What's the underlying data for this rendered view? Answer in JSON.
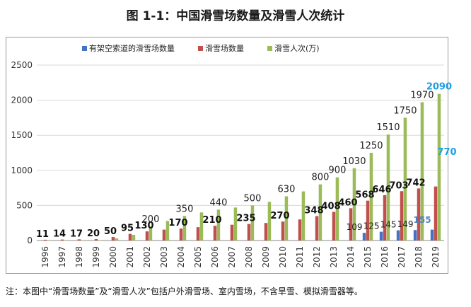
{
  "title": "图 1-1：中国滑雪场数量及滑雪人次统计",
  "note": "注：本图中“滑雪场数量”及“滑雪人次”包括户外滑雪场、室内雪场，不含旱雪、模拟滑雪器等。",
  "chart_data": {
    "type": "bar",
    "title": "图 1-1：中国滑雪场数量及滑雪人次统计",
    "xlabel": "",
    "ylabel": "",
    "ylim": [
      0,
      2500
    ],
    "yticks": [
      "0",
      "500",
      "1000",
      "1500",
      "2000",
      "2500"
    ],
    "grid": true,
    "legend_position": "top",
    "categories": [
      "1996",
      "1997",
      "1998",
      "1999",
      "2000",
      "2001",
      "2002",
      "2003",
      "2004",
      "2005",
      "2006",
      "2007",
      "2008",
      "2009",
      "2010",
      "2011",
      "2012",
      "2013",
      "2014",
      "2015",
      "2016",
      "2017",
      "2018",
      "2019"
    ],
    "series": [
      {
        "name": "有架空索道的滑雪场数量",
        "color": "#4472C4",
        "values": [
          null,
          null,
          null,
          null,
          null,
          null,
          null,
          null,
          null,
          null,
          null,
          null,
          null,
          null,
          null,
          null,
          null,
          null,
          null,
          109,
          125,
          145,
          149,
          155
        ],
        "labels": [
          "",
          "",
          "",
          "",
          "",
          "",
          "",
          "",
          "",
          "",
          "",
          "",
          "",
          "",
          "",
          "",
          "",
          "",
          "",
          "109",
          "125",
          "145",
          "149",
          "155"
        ]
      },
      {
        "name": "滑雪场数量",
        "color": "#C0504D",
        "values": [
          11,
          14,
          17,
          20,
          50,
          95,
          130,
          155,
          170,
          190,
          210,
          225,
          235,
          250,
          270,
          300,
          348,
          408,
          460,
          568,
          646,
          703,
          742,
          770
        ],
        "labels": [
          "11",
          "14",
          "17",
          "20",
          "50",
          "95",
          "130",
          "",
          "170",
          "",
          "210",
          "",
          "235",
          "",
          "270",
          "",
          "348",
          "408",
          "460",
          "568",
          "646",
          "703",
          "742",
          "770"
        ]
      },
      {
        "name": "滑雪人次(万)",
        "color": "#9BBB59",
        "values": [
          1,
          1,
          2,
          3,
          30,
          80,
          200,
          280,
          350,
          400,
          440,
          470,
          500,
          550,
          630,
          700,
          800,
          900,
          1030,
          1250,
          1510,
          1750,
          1970,
          2090
        ],
        "labels": [
          "",
          "",
          "",
          "",
          "",
          "",
          "200",
          "",
          "350",
          "",
          "440",
          "",
          "500",
          "",
          "630",
          "",
          "800",
          "900",
          "1030",
          "1250",
          "1510",
          "1750",
          "1970",
          "2090"
        ]
      }
    ]
  }
}
